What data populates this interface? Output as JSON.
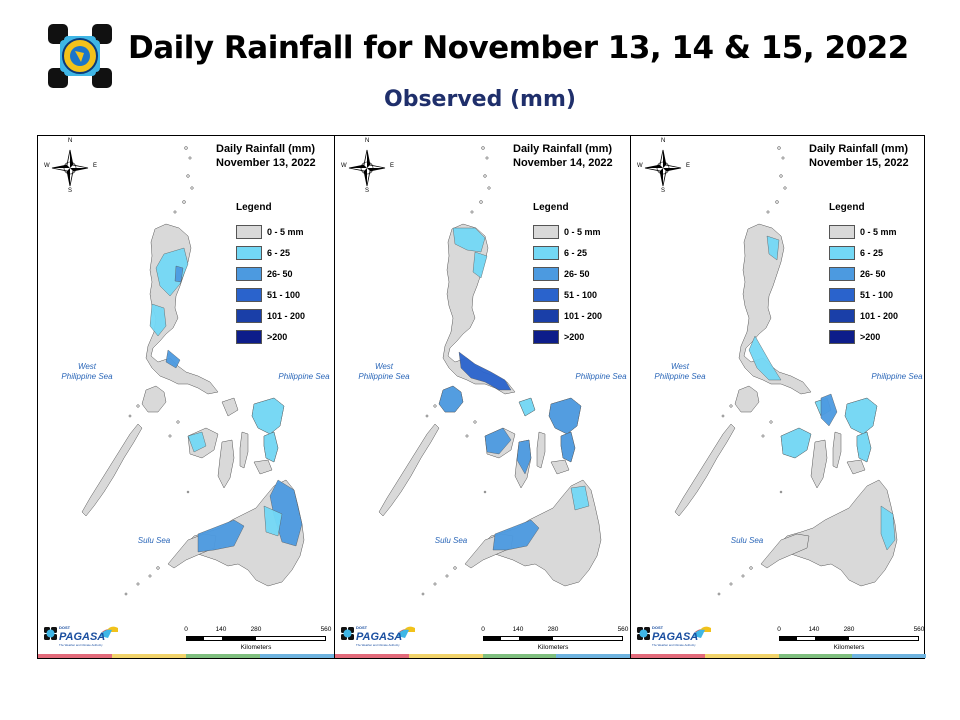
{
  "header": {
    "title": "Daily Rainfall for November 13, 14 & 15, 2022",
    "subtitle": "Observed (mm)"
  },
  "colors": {
    "subtitle": "#1f2f6b",
    "land_base": "#d9d9d9",
    "sea_label": "#2a66b8"
  },
  "legend": {
    "title": "Legend",
    "items": [
      {
        "label": "0 - 5 mm",
        "color": "#d9d9d9"
      },
      {
        "label": "6 - 25",
        "color": "#73d8f5"
      },
      {
        "label": "26- 50",
        "color": "#4c9ae0"
      },
      {
        "label": "51 - 100",
        "color": "#2a63cc"
      },
      {
        "label": "101 - 200",
        "color": "#1a3fa8"
      },
      {
        "label": ">200",
        "color": "#0d1d8a"
      }
    ]
  },
  "maps": [
    {
      "title_line1": "Daily Rainfall (mm)",
      "title_line2": "November 13, 2022",
      "rain_classes": [
        "6 - 25",
        "26- 50"
      ]
    },
    {
      "title_line1": "Daily Rainfall (mm)",
      "title_line2": "November 14, 2022",
      "rain_classes": [
        "6 - 25",
        "26- 50",
        "51 - 100"
      ]
    },
    {
      "title_line1": "Daily Rainfall (mm)",
      "title_line2": "November 15, 2022",
      "rain_classes": [
        "6 - 25",
        "26- 50"
      ]
    }
  ],
  "sea_labels": {
    "west_line1": "West",
    "west_line2": "Philippine Sea",
    "east": "Philippine Sea",
    "sulu": "Sulu Sea"
  },
  "compass": {
    "n": "N",
    "s": "S",
    "e": "E",
    "w": "W"
  },
  "scale": {
    "ticks": [
      "0",
      "140",
      "280",
      "560"
    ],
    "unit": "Kilometers"
  },
  "pagasa_logo": {
    "line1": "DOST",
    "line2": "PAGASA",
    "tagline": "The Weather and Climate Authority"
  },
  "color_strip": [
    "#e36b7b",
    "#f1d36b",
    "#7fbf7f",
    "#6fb4e0"
  ]
}
